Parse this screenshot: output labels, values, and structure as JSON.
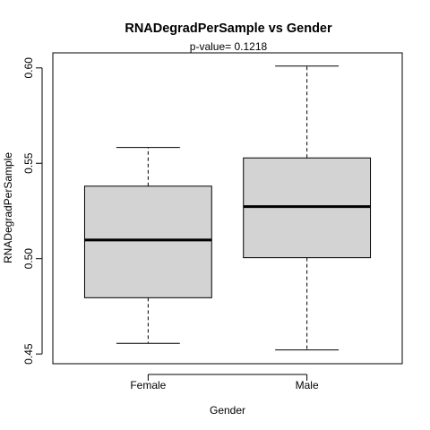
{
  "chart_data": {
    "type": "boxplot",
    "title": "RNADegradPerSample  vs  Gender",
    "subtitle": "p-value= 0.1218",
    "xlabel": "Gender",
    "ylabel": "RNADegradPerSample",
    "categories": [
      "Female",
      "Male"
    ],
    "boxes": [
      {
        "category": "Female",
        "min": 0.4556,
        "q1": 0.4795,
        "median": 0.5098,
        "q3": 0.538,
        "max": 0.5583
      },
      {
        "category": "Male",
        "min": 0.4521,
        "q1": 0.5005,
        "median": 0.5273,
        "q3": 0.5528,
        "max": 0.601
      }
    ],
    "yticks": [
      "0.45",
      "0.50",
      "0.55",
      "0.60"
    ],
    "ytick_values": [
      0.45,
      0.5,
      0.55,
      0.6
    ],
    "ylim": [
      0.4449,
      0.6079
    ],
    "box_fill": "#d3d3d3",
    "grid": false,
    "legend": "none"
  }
}
